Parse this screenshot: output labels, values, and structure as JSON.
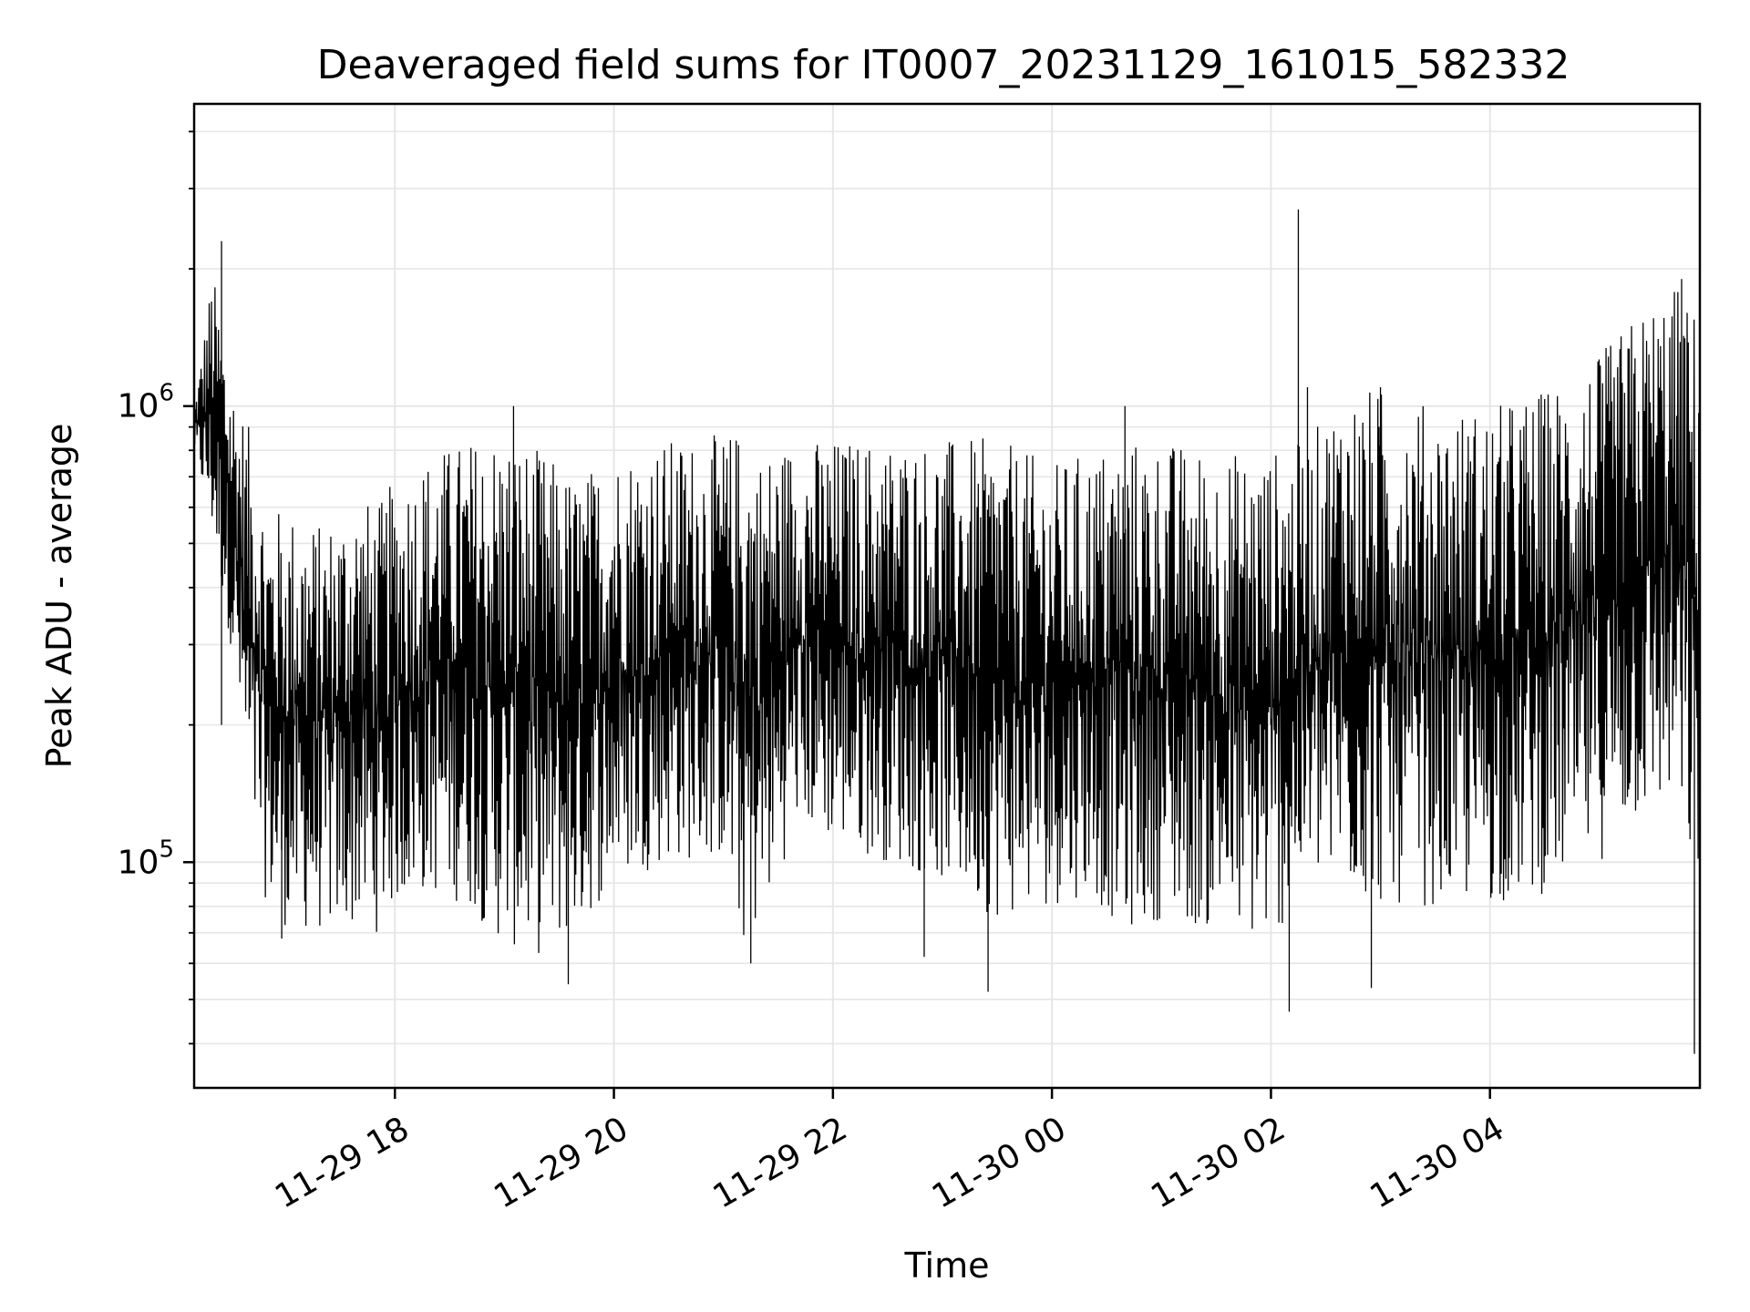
{
  "chart_data": {
    "type": "line",
    "title": "Deaveraged field sums for IT0007_20231129_161015_582332",
    "xlabel": "Time",
    "ylabel": "Peak ADU - average",
    "yscale": "log",
    "ylim": [
      32000,
      4600000
    ],
    "xlim": [
      "2023-11-29 16:10",
      "2023-11-30 05:55"
    ],
    "grid": true,
    "line_color": "#000000",
    "grid_color": "#e6e6e6",
    "x_ticks": [
      {
        "value": "2023-11-29 18:00",
        "label": "11-29 18"
      },
      {
        "value": "2023-11-29 20:00",
        "label": "11-29 20"
      },
      {
        "value": "2023-11-29 22:00",
        "label": "11-29 22"
      },
      {
        "value": "2023-11-30 00:00",
        "label": "11-30 00"
      },
      {
        "value": "2023-11-30 02:00",
        "label": "11-30 02"
      },
      {
        "value": "2023-11-30 04:00",
        "label": "11-30 04"
      }
    ],
    "y_ticks": [
      {
        "value": 100000,
        "base": "10",
        "exp": "5"
      },
      {
        "value": 1000000,
        "base": "10",
        "exp": "6"
      }
    ],
    "series": [
      {
        "envelope": {
          "x": [
            "2023-11-29 16:10",
            "2023-11-29 16:20",
            "2023-11-29 16:30",
            "2023-11-29 16:40",
            "2023-11-29 16:50",
            "2023-11-29 17:00",
            "2023-11-29 17:10",
            "2023-11-29 17:20",
            "2023-11-29 17:30",
            "2023-11-29 17:40",
            "2023-11-29 17:50",
            "2023-11-29 18:00",
            "2023-11-29 18:20",
            "2023-11-29 18:40",
            "2023-11-29 19:00",
            "2023-11-29 19:20",
            "2023-11-29 19:40",
            "2023-11-29 20:00",
            "2023-11-29 20:30",
            "2023-11-29 21:00",
            "2023-11-29 21:10",
            "2023-11-29 21:20",
            "2023-11-29 21:40",
            "2023-11-29 22:00",
            "2023-11-29 22:30",
            "2023-11-29 23:00",
            "2023-11-29 23:30",
            "2023-11-30 00:00",
            "2023-11-30 00:20",
            "2023-11-30 00:40",
            "2023-11-30 01:00",
            "2023-11-30 01:30",
            "2023-11-30 02:00",
            "2023-11-30 02:20",
            "2023-11-30 02:40",
            "2023-11-30 03:00",
            "2023-11-30 03:30",
            "2023-11-30 04:00",
            "2023-11-30 04:30",
            "2023-11-30 05:00",
            "2023-11-30 05:20",
            "2023-11-30 05:40",
            "2023-11-30 05:55"
          ],
          "high": [
            1000000,
            2000000,
            1200000,
            900000,
            600000,
            600000,
            580000,
            550000,
            600000,
            650000,
            600000,
            700000,
            800000,
            850000,
            900000,
            800000,
            700000,
            800000,
            850000,
            870000,
            900000,
            800000,
            850000,
            850000,
            850000,
            850000,
            850000,
            750000,
            800000,
            850000,
            850000,
            800000,
            800000,
            850000,
            1100000,
            1100000,
            1000000,
            1000000,
            1100000,
            1300000,
            1600000,
            1900000,
            1600000
          ],
          "low": [
            800000,
            500000,
            300000,
            120000,
            80000,
            72000,
            70000,
            70000,
            70000,
            72000,
            70000,
            80000,
            85000,
            80000,
            65000,
            62000,
            70000,
            90000,
            100000,
            100000,
            65000,
            72000,
            120000,
            110000,
            100000,
            90000,
            75000,
            80000,
            85000,
            70000,
            75000,
            70000,
            65000,
            90000,
            85000,
            80000,
            80000,
            80000,
            85000,
            100000,
            120000,
            130000,
            80000
          ]
        },
        "spikes": [
          {
            "x": "2023-11-29 16:25",
            "value": 2300000
          },
          {
            "x": "2023-11-29 16:25",
            "value": 200000
          },
          {
            "x": "2023-11-29 16:58",
            "value": 68000
          },
          {
            "x": "2023-11-29 19:05",
            "value": 1000000
          },
          {
            "x": "2023-11-29 19:35",
            "value": 54000
          },
          {
            "x": "2023-11-29 21:15",
            "value": 60000
          },
          {
            "x": "2023-11-29 22:50",
            "value": 62000
          },
          {
            "x": "2023-11-29 23:25",
            "value": 52000
          },
          {
            "x": "2023-11-30 00:40",
            "value": 1000000
          },
          {
            "x": "2023-11-30 02:15",
            "value": 2700000
          },
          {
            "x": "2023-11-30 02:20",
            "value": 1100000
          },
          {
            "x": "2023-11-30 02:10",
            "value": 47000
          },
          {
            "x": "2023-11-30 03:00",
            "value": 1100000
          },
          {
            "x": "2023-11-30 02:55",
            "value": 53000
          },
          {
            "x": "2023-11-30 05:45",
            "value": 1900000
          },
          {
            "x": "2023-11-30 05:52",
            "value": 38000
          }
        ]
      }
    ]
  }
}
